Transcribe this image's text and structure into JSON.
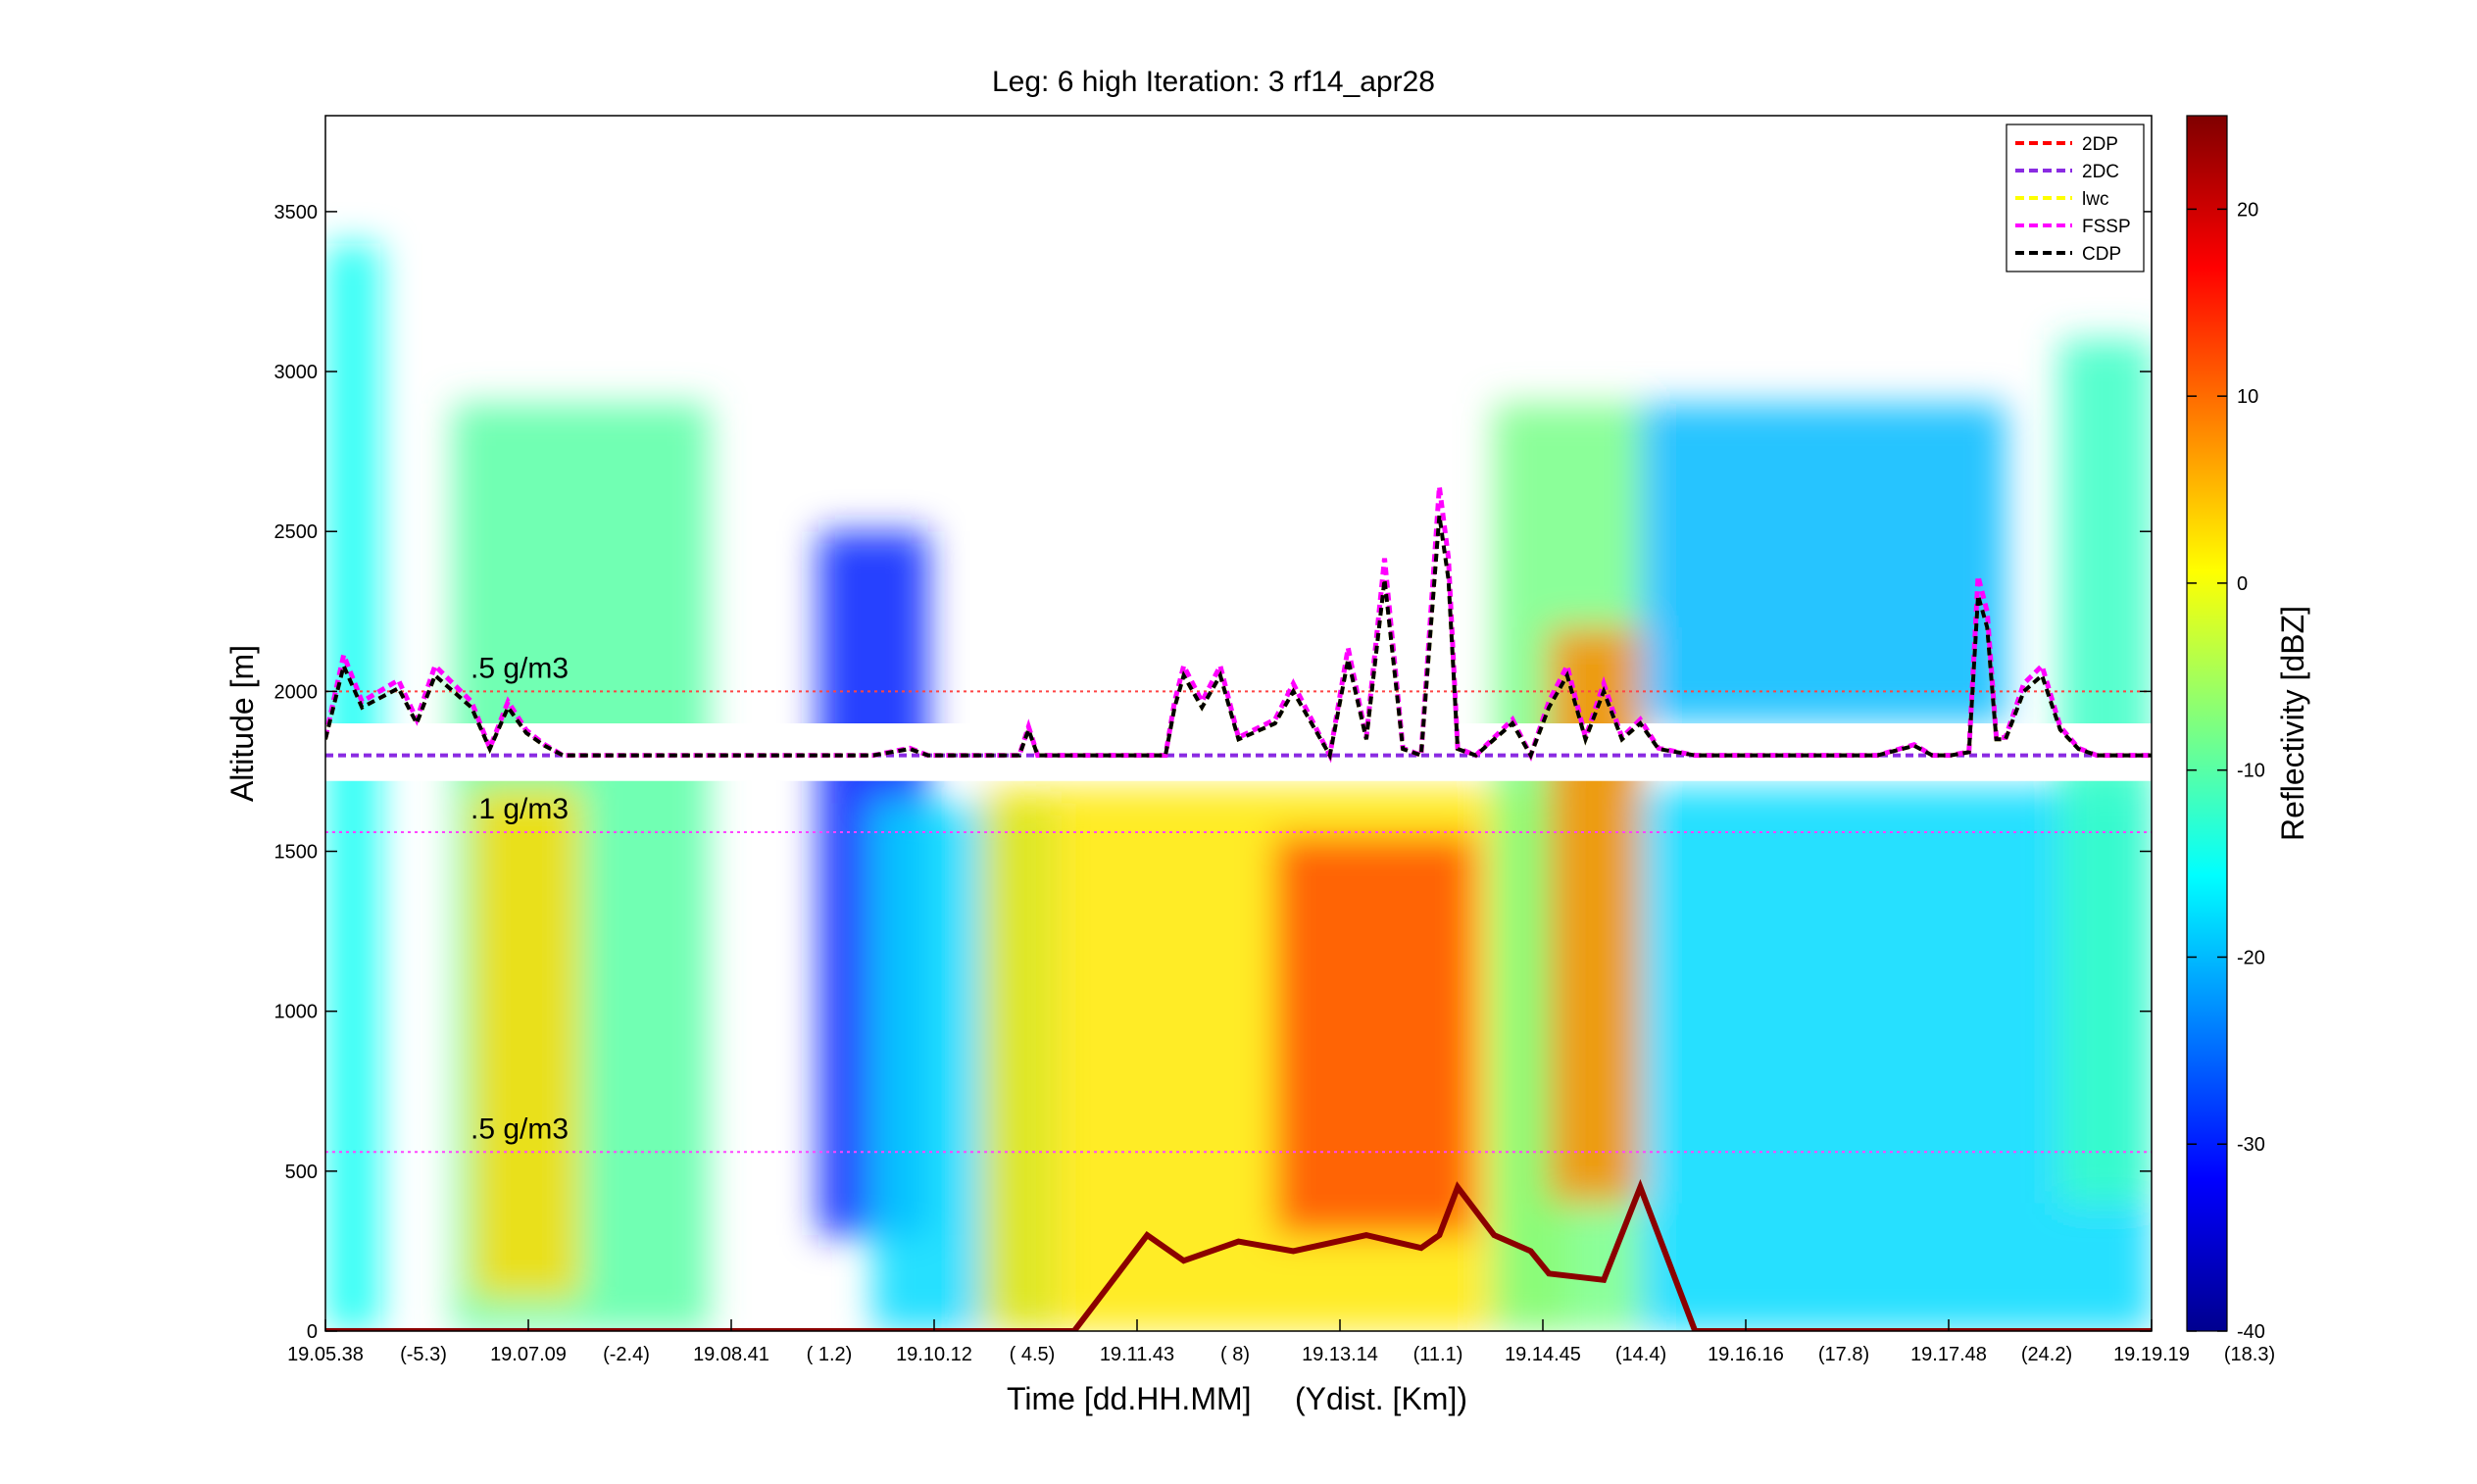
{
  "chart_data": {
    "type": "heatmap",
    "title": "Leg: 6 high Iteration: 3  rf14_apr28",
    "xlabel": "Time [dd.HH.MM]     (Ydist. [Km])",
    "ylabel": "Altitude [m]",
    "ylim": [
      0,
      3800
    ],
    "yticks": [
      0,
      500,
      1000,
      1500,
      2000,
      2500,
      3000,
      3500
    ],
    "xticks": [
      {
        "time": "19.05.38",
        "ydist": "(-5.3)"
      },
      {
        "time": "19.07.09",
        "ydist": "(-2.4)"
      },
      {
        "time": "19.08.41",
        "ydist": "( 1.2)"
      },
      {
        "time": "19.10.12",
        "ydist": "( 4.5)"
      },
      {
        "time": "19.11.43",
        "ydist": "(   8)"
      },
      {
        "time": "19.13.14",
        "ydist": "(11.1)"
      },
      {
        "time": "19.14.45",
        "ydist": "(14.4)"
      },
      {
        "time": "19.16.16",
        "ydist": "(17.8)"
      },
      {
        "time": "19.17.48",
        "ydist": "(24.2)"
      },
      {
        "time": "19.19.19",
        "ydist": "(18.3)"
      }
    ],
    "colorbar": {
      "label": "Reflectivity [dBZ]",
      "range": [
        -40,
        25
      ],
      "ticks": [
        -40,
        -30,
        -20,
        -10,
        0,
        10,
        20
      ],
      "colormap": "jet"
    },
    "legend": {
      "placement": "top-right",
      "entries": [
        {
          "name": "2DP",
          "color": "#ff0000"
        },
        {
          "name": "2DC",
          "color": "#8a2be2"
        },
        {
          "name": "lwc",
          "color": "#ffff00"
        },
        {
          "name": "FSSP",
          "color": "#ff00ff"
        },
        {
          "name": "CDP",
          "color": "#000000"
        }
      ]
    },
    "reference_lines": [
      {
        "label": ".5 g/m3",
        "altitude": 2000,
        "color": "#ff4444"
      },
      {
        "label": ".1 g/m3",
        "altitude": 1560,
        "color": "#ff44ff"
      },
      {
        "label": ".5 g/m3",
        "altitude": 560,
        "color": "#ff44ff"
      }
    ],
    "flight_gap": {
      "altitude_low": 1720,
      "altitude_high": 1900
    },
    "in_situ_baseline_altitude": 1800,
    "in_situ_trace": {
      "x_fraction": [
        0,
        0.01,
        0.02,
        0.04,
        0.05,
        0.06,
        0.07,
        0.08,
        0.09,
        0.1,
        0.11,
        0.12,
        0.13,
        0.15,
        0.2,
        0.3,
        0.32,
        0.33,
        0.38,
        0.385,
        0.39,
        0.46,
        0.465,
        0.47,
        0.48,
        0.49,
        0.5,
        0.52,
        0.53,
        0.55,
        0.56,
        0.57,
        0.58,
        0.59,
        0.6,
        0.61,
        0.615,
        0.62,
        0.63,
        0.64,
        0.65,
        0.66,
        0.67,
        0.68,
        0.69,
        0.7,
        0.71,
        0.72,
        0.73,
        0.75,
        0.8,
        0.85,
        0.87,
        0.88,
        0.89,
        0.9,
        0.905,
        0.91,
        0.915,
        0.92,
        0.93,
        0.94,
        0.95,
        0.96,
        0.97,
        0.98,
        1.0
      ],
      "altitude": [
        1850,
        2080,
        1950,
        2010,
        1900,
        2050,
        2000,
        1950,
        1820,
        1950,
        1870,
        1830,
        1800,
        1800,
        1800,
        1800,
        1820,
        1800,
        1800,
        1880,
        1800,
        1800,
        1950,
        2050,
        1950,
        2050,
        1850,
        1900,
        2000,
        1800,
        2100,
        1850,
        2350,
        1820,
        1800,
        2550,
        2350,
        1820,
        1800,
        1850,
        1900,
        1800,
        1950,
        2050,
        1850,
        2000,
        1850,
        1900,
        1820,
        1800,
        1800,
        1800,
        1830,
        1800,
        1800,
        1810,
        2300,
        2200,
        1850,
        1850,
        2000,
        2050,
        1880,
        1820,
        1800,
        1800,
        1800
      ]
    },
    "surface_echo_trace": {
      "x_fraction": [
        0,
        0.41,
        0.43,
        0.45,
        0.47,
        0.5,
        0.53,
        0.57,
        0.6,
        0.61,
        0.62,
        0.64,
        0.66,
        0.67,
        0.7,
        0.72,
        0.75,
        0.8,
        1.0
      ],
      "altitude": [
        0,
        0,
        150,
        300,
        220,
        280,
        250,
        300,
        260,
        300,
        450,
        300,
        250,
        180,
        160,
        450,
        0,
        0,
        0
      ]
    },
    "reflectivity_regions": [
      {
        "x": [
          0.0,
          0.03
        ],
        "altitude": [
          0,
          3400
        ],
        "dbz": -15
      },
      {
        "x": [
          0.07,
          0.21
        ],
        "altitude": [
          0,
          2900
        ],
        "dbz": -10
      },
      {
        "x": [
          0.08,
          0.14
        ],
        "altitude": [
          100,
          1700
        ],
        "dbz": 3
      },
      {
        "x": [
          0.27,
          0.33
        ],
        "altitude": [
          300,
          2500
        ],
        "dbz": -30
      },
      {
        "x": [
          0.3,
          0.4
        ],
        "altitude": [
          0,
          1650
        ],
        "dbz": -18
      },
      {
        "x": [
          0.36,
          0.68
        ],
        "altitude": [
          0,
          1700
        ],
        "dbz": 2
      },
      {
        "x": [
          0.52,
          0.63
        ],
        "altitude": [
          300,
          1550
        ],
        "dbz": 12
      },
      {
        "x": [
          0.64,
          0.72
        ],
        "altitude": [
          0,
          2900
        ],
        "dbz": -8
      },
      {
        "x": [
          0.67,
          0.72
        ],
        "altitude": [
          400,
          2200
        ],
        "dbz": 8
      },
      {
        "x": [
          0.72,
          1.0
        ],
        "altitude": [
          0,
          1700
        ],
        "dbz": -18
      },
      {
        "x": [
          0.72,
          0.92
        ],
        "altitude": [
          1900,
          2900
        ],
        "dbz": -20
      },
      {
        "x": [
          0.95,
          1.0
        ],
        "altitude": [
          400,
          3100
        ],
        "dbz": -12
      }
    ]
  }
}
